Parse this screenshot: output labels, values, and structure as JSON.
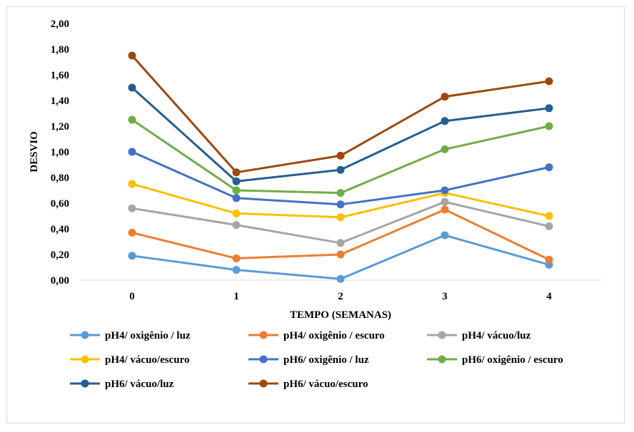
{
  "chart_data": {
    "type": "line",
    "title": "",
    "xlabel": "TEMPO (SEMANAS)",
    "ylabel": "DESVIO",
    "x": [
      0,
      1,
      2,
      3,
      4
    ],
    "x_tick_labels": [
      "0",
      "1",
      "2",
      "3",
      "4"
    ],
    "ylim": [
      0,
      2
    ],
    "y_tick_labels": [
      "0,00",
      "0,20",
      "0,40",
      "0,60",
      "0,80",
      "1,00",
      "1,20",
      "1,40",
      "1,60",
      "1,80",
      "2,00"
    ],
    "grid": false,
    "legend_position": "bottom",
    "series": [
      {
        "name": "pH4/ oxigênio / luz",
        "color": "#5b9bd5",
        "values": [
          0.19,
          0.08,
          0.01,
          0.35,
          0.12
        ]
      },
      {
        "name": "pH4/ oxigênio / escuro",
        "color": "#ed7d31",
        "values": [
          0.37,
          0.17,
          0.2,
          0.55,
          0.16
        ]
      },
      {
        "name": "pH4/ vácuo/luz",
        "color": "#a5a5a5",
        "values": [
          0.56,
          0.43,
          0.29,
          0.61,
          0.42
        ]
      },
      {
        "name": "pH4/ vácuo/escuro",
        "color": "#ffc000",
        "values": [
          0.75,
          0.52,
          0.49,
          0.68,
          0.5
        ]
      },
      {
        "name": "pH6/ oxigênio / luz",
        "color": "#4472c4",
        "values": [
          1.0,
          0.64,
          0.59,
          0.7,
          0.88
        ]
      },
      {
        "name": "pH6/ oxigênio / escuro",
        "color": "#70ad47",
        "values": [
          1.25,
          0.7,
          0.68,
          1.02,
          1.2
        ]
      },
      {
        "name": "pH6/ vácuo/luz",
        "color": "#255e91",
        "values": [
          1.5,
          0.77,
          0.86,
          1.24,
          1.34
        ]
      },
      {
        "name": "pH6/ vácuo/escuro",
        "color": "#9e480e",
        "values": [
          1.75,
          0.84,
          0.97,
          1.43,
          1.55
        ]
      }
    ]
  }
}
